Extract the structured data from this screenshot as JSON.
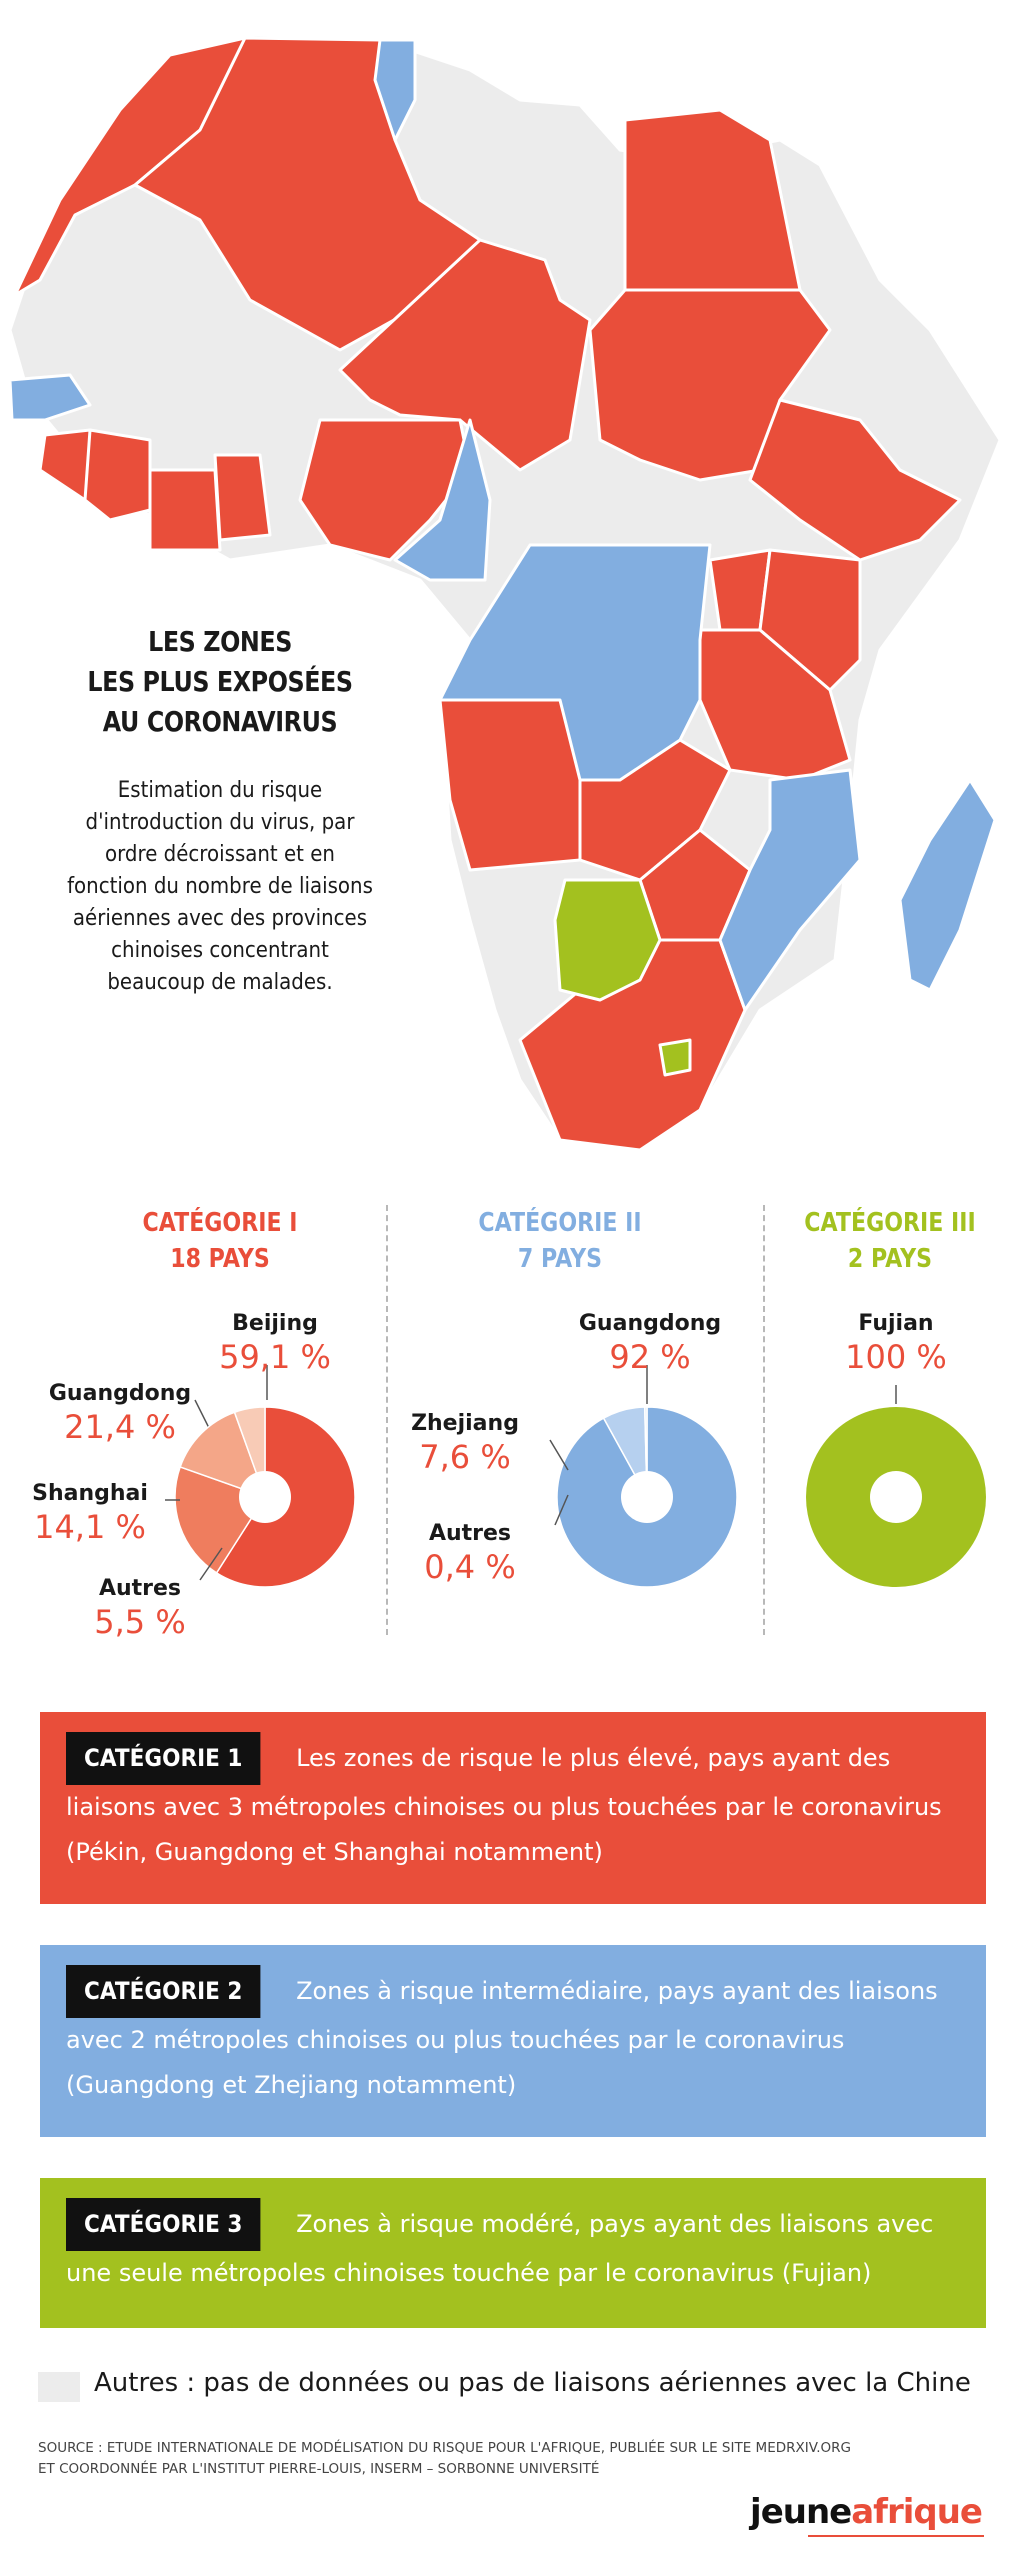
{
  "title_lines": [
    "LES ZONES",
    "LES PLUS EXPOSÉES",
    "AU CORONAVIRUS"
  ],
  "subtitle": "Estimation du risque d'introduction du virus, par ordre décroissant et en fonction du nombre de liaisons aériennes avec des provinces chinoises concentrant beaucoup de malades.",
  "colors": {
    "cat1": "#e94e3a",
    "cat2": "#82aee0",
    "cat3": "#a3c11f",
    "other": "#ececec"
  },
  "categories": [
    {
      "title": "CATÉGORIE I",
      "count": "18 PAYS"
    },
    {
      "title": "CATÉGORIE II",
      "count": "7 PAYS"
    },
    {
      "title": "CATÉGORIE III",
      "count": "2 PAYS"
    }
  ],
  "chart_data": [
    {
      "type": "pie",
      "title": "CATÉGORIE I",
      "categories": [
        "Beijing",
        "Guangdong",
        "Shanghai",
        "Autres"
      ],
      "values": [
        59.1,
        21.4,
        14.1,
        5.5
      ],
      "labels": [
        "59,1 %",
        "21,4 %",
        "14,1 %",
        "5,5 %"
      ],
      "slice_colors": [
        "#e94e3a",
        "#ef7d5e",
        "#f4a688",
        "#f8cbb6"
      ]
    },
    {
      "type": "pie",
      "title": "CATÉGORIE II",
      "categories": [
        "Guangdong",
        "Zhejiang",
        "Autres"
      ],
      "values": [
        92,
        7.6,
        0.4
      ],
      "labels": [
        "92 %",
        "7,6 %",
        "0,4 %"
      ],
      "slice_colors": [
        "#82aee0",
        "#b6d0ef",
        "#dce8f7"
      ]
    },
    {
      "type": "pie",
      "title": "CATÉGORIE III",
      "categories": [
        "Fujian"
      ],
      "values": [
        100
      ],
      "labels": [
        "100 %"
      ],
      "slice_colors": [
        "#a3c11f"
      ]
    }
  ],
  "boxes": [
    {
      "tag": "CATÉGORIE 1",
      "text": "Les zones de risque le plus élevé, pays ayant des liaisons avec 3 métropoles chinoises ou plus touchées par le coronavirus (Pékin, Guangdong et Shanghai notamment)"
    },
    {
      "tag": "CATÉGORIE 2",
      "text": "Zones à risque intermédiaire, pays ayant des liaisons avec 2 métropoles chinoises ou plus touchées par le coronavirus (Guangdong et Zhejiang notamment)"
    },
    {
      "tag": "CATÉGORIE 3",
      "text": "Zones à risque modéré, pays ayant des liaisons avec une seule métropoles chinoises touchée par le coronavirus (Fujian)"
    }
  ],
  "legend": "Autres : pas de données ou pas de liaisons aériennes avec la Chine",
  "source_lines": [
    "Source : Etude internationale de modélisation du risque pour l'Afrique, publiée sur le site medrxiv.org",
    "et coordonnée par l'Institut Pierre-Louis, Inserm – Sorbonne Université"
  ],
  "brand": {
    "part1": "jeune",
    "part2": "afrique"
  }
}
